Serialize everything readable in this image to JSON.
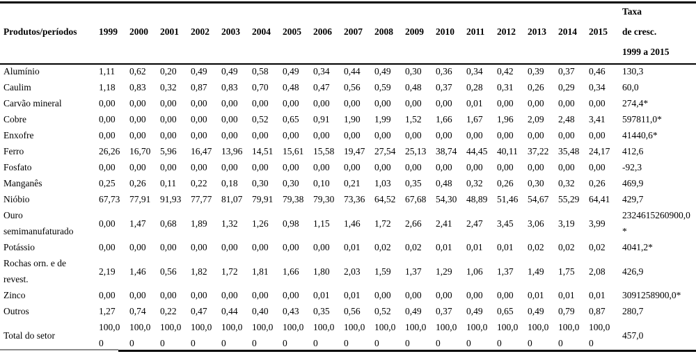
{
  "styles": {
    "text_color": "#000000",
    "background_color": "#ffffff",
    "rule_color": "#000000",
    "partial_rule_color": "#8a8a8a"
  },
  "chart_data": {
    "type": "table",
    "title": "",
    "columns": [
      "Produtos/períodos",
      "1999",
      "2000",
      "2001",
      "2002",
      "2003",
      "2004",
      "2005",
      "2006",
      "2007",
      "2008",
      "2009",
      "2010",
      "2011",
      "2012",
      "2013",
      "2014",
      "2015",
      "Taxa de cresc. 1999 a 2015"
    ]
  },
  "table": {
    "header": {
      "product_col": "Produtos/períodos",
      "years": [
        "1999",
        "2000",
        "2001",
        "2002",
        "2003",
        "2004",
        "2005",
        "2006",
        "2007",
        "2008",
        "2009",
        "2010",
        "2011",
        "2012",
        "2013",
        "2014",
        "2015"
      ],
      "growth_col": "Taxa de cresc. 1999 a 2015",
      "growth_col_lines": [
        "Taxa",
        "de cresc.",
        "1999 a 2015"
      ]
    },
    "rows": [
      {
        "label": "Alumínio",
        "values": [
          "1,11",
          "0,62",
          "0,20",
          "0,49",
          "0,49",
          "0,58",
          "0,49",
          "0,34",
          "0,44",
          "0,49",
          "0,30",
          "0,36",
          "0,34",
          "0,42",
          "0,39",
          "0,37",
          "0,46"
        ],
        "growth": "130,3"
      },
      {
        "label": "Caulim",
        "values": [
          "1,18",
          "0,83",
          "0,32",
          "0,87",
          "0,83",
          "0,70",
          "0,48",
          "0,47",
          "0,56",
          "0,59",
          "0,48",
          "0,37",
          "0,28",
          "0,31",
          "0,26",
          "0,29",
          "0,34"
        ],
        "growth": "60,0"
      },
      {
        "label": "Carvão mineral",
        "values": [
          "0,00",
          "0,00",
          "0,00",
          "0,00",
          "0,00",
          "0,00",
          "0,00",
          "0,00",
          "0,00",
          "0,00",
          "0,00",
          "0,00",
          "0,01",
          "0,00",
          "0,00",
          "0,00",
          "0,00"
        ],
        "growth": "274,4*"
      },
      {
        "label": "Cobre",
        "values": [
          "0,00",
          "0,00",
          "0,00",
          "0,00",
          "0,00",
          "0,52",
          "0,65",
          "0,91",
          "1,90",
          "1,99",
          "1,52",
          "1,66",
          "1,67",
          "1,96",
          "2,09",
          "2,48",
          "3,41"
        ],
        "growth": "597811,0*"
      },
      {
        "label": "Enxofre",
        "values": [
          "0,00",
          "0,00",
          "0,00",
          "0,00",
          "0,00",
          "0,00",
          "0,00",
          "0,00",
          "0,00",
          "0,00",
          "0,00",
          "0,00",
          "0,00",
          "0,00",
          "0,00",
          "0,00",
          "0,00"
        ],
        "growth": "41440,6*"
      },
      {
        "label": "Ferro",
        "values": [
          "26,26",
          "16,70",
          "5,96",
          "16,47",
          "13,96",
          "14,51",
          "15,61",
          "15,58",
          "19,47",
          "27,54",
          "25,13",
          "38,74",
          "44,45",
          "40,11",
          "37,22",
          "35,48",
          "24,17"
        ],
        "growth": "412,6"
      },
      {
        "label": "Fosfato",
        "values": [
          "0,00",
          "0,00",
          "0,00",
          "0,00",
          "0,00",
          "0,00",
          "0,00",
          "0,00",
          "0,00",
          "0,00",
          "0,00",
          "0,00",
          "0,00",
          "0,00",
          "0,00",
          "0,00",
          "0,00"
        ],
        "growth": "-92,3"
      },
      {
        "label": "Manganês",
        "values": [
          "0,25",
          "0,26",
          "0,11",
          "0,22",
          "0,18",
          "0,30",
          "0,30",
          "0,10",
          "0,21",
          "1,03",
          "0,35",
          "0,48",
          "0,32",
          "0,26",
          "0,30",
          "0,32",
          "0,26"
        ],
        "growth": "469,9"
      },
      {
        "label": "Nióbio",
        "values": [
          "67,73",
          "77,91",
          "91,93",
          "77,77",
          "81,07",
          "79,91",
          "79,38",
          "79,30",
          "73,36",
          "64,52",
          "67,68",
          "54,30",
          "48,89",
          "51,46",
          "54,67",
          "55,29",
          "64,41"
        ],
        "growth": "429,7"
      },
      {
        "label": "Ouro semimanufaturado",
        "label_lines": [
          "Ouro",
          "semimanufaturado"
        ],
        "values": [
          "0,00",
          "1,47",
          "0,68",
          "1,89",
          "1,32",
          "1,26",
          "0,98",
          "1,15",
          "1,46",
          "1,72",
          "2,66",
          "2,41",
          "2,47",
          "3,45",
          "3,06",
          "3,19",
          "3,99"
        ],
        "growth": "2324615260900,0*",
        "growth_lines": [
          "2324615260900,0",
          "*"
        ]
      },
      {
        "label": "Potássio",
        "values": [
          "0,00",
          "0,00",
          "0,00",
          "0,00",
          "0,00",
          "0,00",
          "0,00",
          "0,00",
          "0,01",
          "0,02",
          "0,02",
          "0,01",
          "0,01",
          "0,01",
          "0,02",
          "0,02",
          "0,02"
        ],
        "growth": "4041,2*"
      },
      {
        "label": "Rochas orn. e de revest.",
        "label_lines": [
          "Rochas orn. e de",
          "revest."
        ],
        "values": [
          "2,19",
          "1,46",
          "0,56",
          "1,82",
          "1,72",
          "1,81",
          "1,66",
          "1,80",
          "2,03",
          "1,59",
          "1,37",
          "1,29",
          "1,06",
          "1,37",
          "1,49",
          "1,75",
          "2,08"
        ],
        "growth": "426,9"
      },
      {
        "label": "Zinco",
        "values": [
          "0,00",
          "0,00",
          "0,00",
          "0,00",
          "0,00",
          "0,00",
          "0,00",
          "0,01",
          "0,01",
          "0,00",
          "0,00",
          "0,00",
          "0,00",
          "0,00",
          "0,01",
          "0,01",
          "0,01"
        ],
        "growth": "3091258900,0*"
      },
      {
        "label": "Outros",
        "values": [
          "1,27",
          "0,74",
          "0,22",
          "0,47",
          "0,44",
          "0,40",
          "0,43",
          "0,35",
          "0,56",
          "0,52",
          "0,49",
          "0,37",
          "0,49",
          "0,65",
          "0,49",
          "0,79",
          "0,87"
        ],
        "growth": "280,7"
      },
      {
        "label": "Total do setor",
        "values": [
          [
            "100,0",
            "0"
          ],
          [
            "100,0",
            "0"
          ],
          [
            "100,0",
            "0"
          ],
          [
            "100,0",
            "0"
          ],
          [
            "100,0",
            "0"
          ],
          [
            "100,0",
            "0"
          ],
          [
            "100,0",
            "0"
          ],
          [
            "100,0",
            "0"
          ],
          [
            "100,0",
            "0"
          ],
          [
            "100,0",
            "0"
          ],
          [
            "100,0",
            "0"
          ],
          [
            "100,0",
            "0"
          ],
          [
            "100,0",
            "0"
          ],
          [
            "100,0",
            "0"
          ],
          [
            "100,0",
            "0"
          ],
          [
            "100,0",
            "0"
          ],
          [
            "100,0",
            "0"
          ]
        ],
        "growth": "457,0"
      }
    ]
  }
}
